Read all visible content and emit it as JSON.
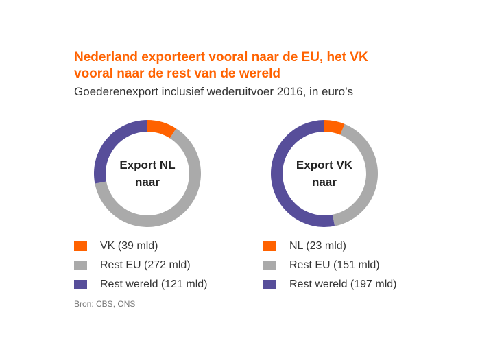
{
  "title_line1": "Nederland exporteert vooral naar de EU, het VK",
  "title_line2": "vooral naar de rest van de wereld",
  "subtitle": "Goederenexport inclusief wederuitvoer 2016, in euro’s",
  "source": "Bron: CBS, ONS",
  "chart_data": [
    {
      "type": "pie",
      "center_line1": "Export NL",
      "center_line2": "naar",
      "labels": [
        "VK (39 mld)",
        "Rest EU (272 mld)",
        "Rest wereld (121 mld)"
      ],
      "values": [
        39,
        272,
        121
      ],
      "colors": [
        "#ff6200",
        "#aaaaaa",
        "#574e9a"
      ]
    },
    {
      "type": "pie",
      "center_line1": "Export VK",
      "center_line2": "naar",
      "labels": [
        "NL (23 mld)",
        "Rest EU (151 mld)",
        "Rest wereld (197 mld)"
      ],
      "values": [
        23,
        151,
        197
      ],
      "colors": [
        "#ff6200",
        "#aaaaaa",
        "#574e9a"
      ]
    }
  ]
}
